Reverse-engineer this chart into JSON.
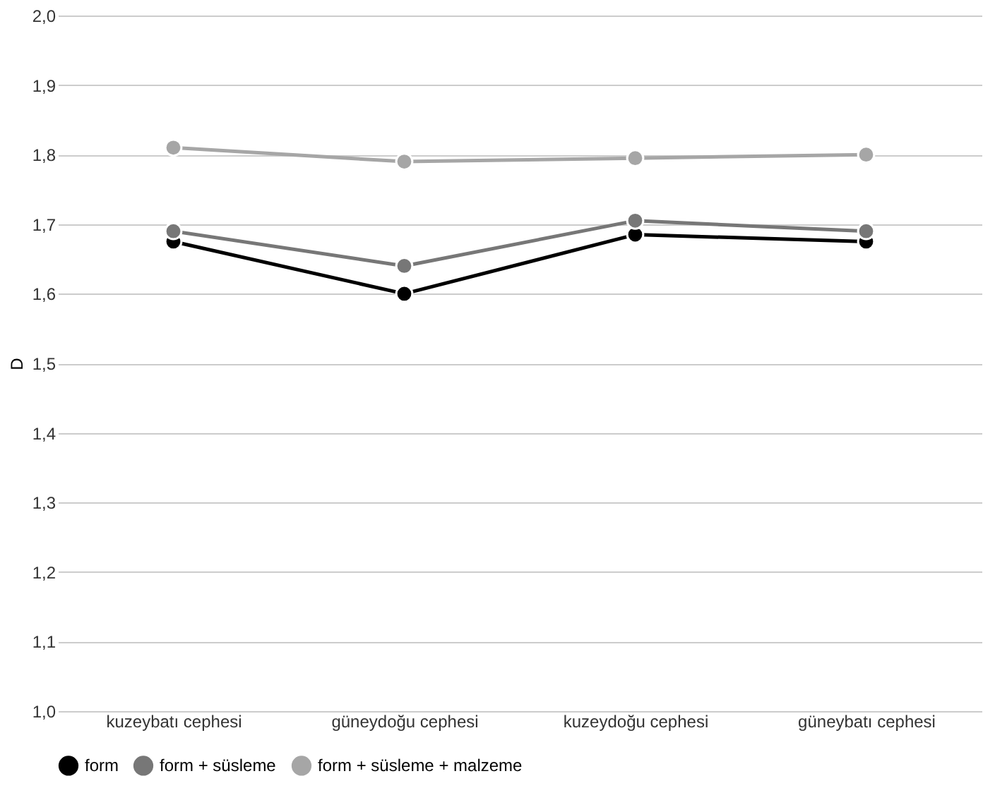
{
  "chart_data": {
    "type": "line",
    "ylabel": "D",
    "categories": [
      "kuzeybatı cephesi",
      "güneydoğu cephesi",
      "kuzeydoğu cephesi",
      "güneybatı cephesi"
    ],
    "series": [
      {
        "name": "form",
        "color": "#000000",
        "values": [
          1.675,
          1.6,
          1.685,
          1.675
        ]
      },
      {
        "name": "form + süsleme",
        "color": "#777777",
        "values": [
          1.69,
          1.64,
          1.705,
          1.69
        ]
      },
      {
        "name": "form + süsleme + malzeme",
        "color": "#a6a6a6",
        "values": [
          1.81,
          1.79,
          1.795,
          1.8
        ]
      }
    ],
    "ylim": [
      1.0,
      2.0
    ],
    "yticks": [
      {
        "value": 1.0,
        "label": "1,0"
      },
      {
        "value": 1.1,
        "label": "1,1"
      },
      {
        "value": 1.2,
        "label": "1,2"
      },
      {
        "value": 1.3,
        "label": "1,3"
      },
      {
        "value": 1.4,
        "label": "1,4"
      },
      {
        "value": 1.5,
        "label": "1,5"
      },
      {
        "value": 1.6,
        "label": "1,6"
      },
      {
        "value": 1.7,
        "label": "1,7"
      },
      {
        "value": 1.8,
        "label": "1,8"
      },
      {
        "value": 1.9,
        "label": "1,9"
      },
      {
        "value": 2.0,
        "label": "2,0"
      }
    ],
    "grid": "y",
    "legend": "bottom",
    "marker": "circle",
    "line_style": "solid"
  }
}
